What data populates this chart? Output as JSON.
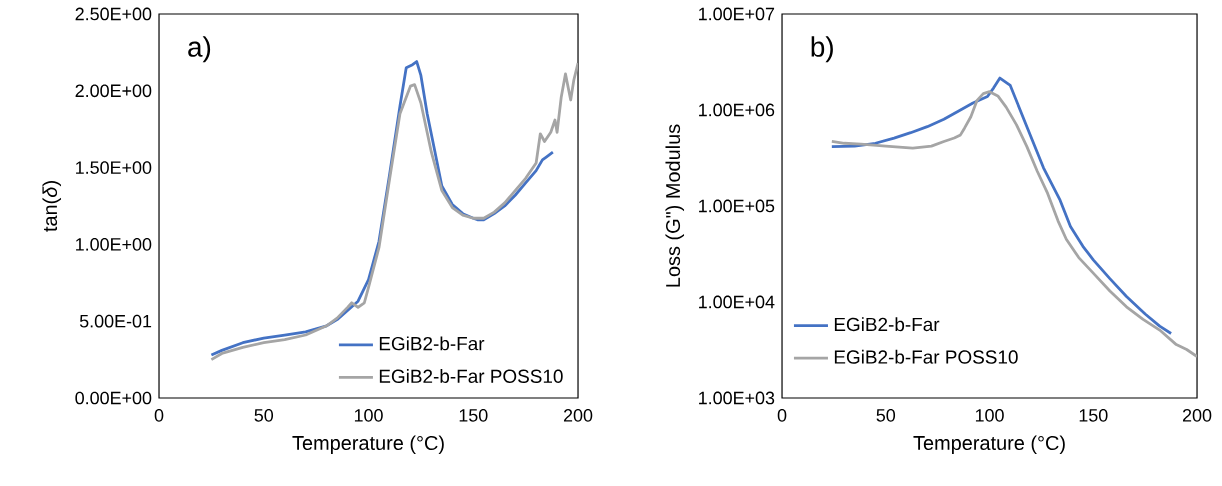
{
  "chart_data": [
    {
      "type": "line",
      "xlabel": "Temperature (°C)",
      "ylabel": "tan(*δ*)",
      "annotations": [
        "a)"
      ],
      "xlim": [
        0,
        200
      ],
      "xticks": [
        0,
        50,
        100,
        150,
        200
      ],
      "ylim": [
        0,
        2.5
      ],
      "yticks": [
        {
          "value": 0,
          "label": "0.00E+00"
        },
        {
          "value": 0.5,
          "label": "5.00E-01"
        },
        {
          "value": 1,
          "label": "1.00E+00"
        },
        {
          "value": 1.5,
          "label": "1.50E+00"
        },
        {
          "value": 2,
          "label": "2.00E+00"
        },
        {
          "value": 2.5,
          "label": "2.50E+00"
        }
      ],
      "grid": false,
      "legend": "bottom right",
      "marker": "none",
      "line_style": "solid",
      "series": [
        {
          "name": "EGiB2-b-Far",
          "color": "#4472c4",
          "x": [
            25,
            30,
            40,
            50,
            60,
            70,
            80,
            85,
            90,
            95,
            100,
            105,
            110,
            115,
            118,
            121,
            123,
            125,
            128,
            131,
            135,
            140,
            145,
            150,
            152,
            155,
            160,
            165,
            170,
            175,
            180,
            183,
            185,
            188
          ],
          "values": [
            0.28,
            0.31,
            0.36,
            0.39,
            0.41,
            0.43,
            0.47,
            0.51,
            0.57,
            0.63,
            0.77,
            1.02,
            1.45,
            1.9,
            2.15,
            2.17,
            2.19,
            2.1,
            1.85,
            1.65,
            1.38,
            1.26,
            1.2,
            1.17,
            1.16,
            1.16,
            1.2,
            1.25,
            1.32,
            1.4,
            1.48,
            1.55,
            1.57,
            1.6
          ]
        },
        {
          "name": "EGiB2-b-Far POSS10",
          "color": "#a5a5a5",
          "x": [
            25,
            30,
            40,
            50,
            60,
            70,
            80,
            85,
            90,
            92,
            95,
            98,
            100,
            105,
            110,
            115,
            120,
            122,
            125,
            130,
            135,
            140,
            145,
            150,
            155,
            160,
            165,
            170,
            175,
            180,
            182,
            184,
            187,
            189,
            190,
            192,
            194,
            196.5,
            198,
            200
          ],
          "values": [
            0.25,
            0.29,
            0.33,
            0.36,
            0.38,
            0.41,
            0.47,
            0.52,
            0.59,
            0.62,
            0.59,
            0.62,
            0.72,
            0.98,
            1.42,
            1.85,
            2.03,
            2.04,
            1.92,
            1.6,
            1.35,
            1.24,
            1.19,
            1.17,
            1.17,
            1.21,
            1.27,
            1.35,
            1.43,
            1.53,
            1.72,
            1.67,
            1.73,
            1.81,
            1.73,
            1.96,
            2.11,
            1.94,
            2.07,
            2.18
          ]
        }
      ]
    },
    {
      "type": "line",
      "xlabel": "Temperature (°C)",
      "ylabel": "Loss (G\") Modulus",
      "annotations": [
        "b)"
      ],
      "xlim": [
        0,
        200
      ],
      "xticks": [
        0,
        50,
        100,
        150,
        200
      ],
      "ylim": [
        1000,
        10000000
      ],
      "log": true,
      "yticks": [
        {
          "value": 1000,
          "label": "1.00E+03"
        },
        {
          "value": 10000,
          "label": "1.00E+04"
        },
        {
          "value": 100000,
          "label": "1.00E+05"
        },
        {
          "value": 1000000,
          "label": "1.00E+06"
        },
        {
          "value": 10000000,
          "label": "1.00E+07"
        }
      ],
      "grid": false,
      "legend": "bottom left",
      "marker": "none",
      "line_style": "solid",
      "series": [
        {
          "name": "EGiB2-b-Far",
          "color": "#4472c4",
          "x": [
            24,
            35,
            45,
            54,
            62,
            70,
            78,
            86,
            92,
            99,
            102,
            105,
            110,
            118,
            126,
            134,
            139,
            145,
            150,
            158,
            166,
            175,
            182,
            187.5
          ],
          "values": [
            415000,
            420000,
            450000,
            510000,
            580000,
            670000,
            800000,
            1000000,
            1180000,
            1380000,
            1700000,
            2150000,
            1800000,
            670000,
            250000,
            115000,
            61000,
            38000,
            27500,
            17500,
            11400,
            7500,
            5600,
            4700
          ]
        },
        {
          "name": "EGiB2-b-Far POSS10",
          "color": "#a5a5a5",
          "x": [
            24,
            30,
            38,
            50,
            63,
            72,
            78,
            83,
            86,
            88,
            91,
            94,
            97,
            100,
            104,
            108,
            113,
            118,
            123,
            128,
            133,
            137,
            143,
            150,
            158,
            166,
            174,
            182,
            190,
            195,
            200
          ],
          "values": [
            470000,
            450000,
            440000,
            420000,
            400000,
            420000,
            470000,
            510000,
            550000,
            650000,
            850000,
            1260000,
            1480000,
            1550000,
            1400000,
            1070000,
            700000,
            415000,
            230000,
            135000,
            70000,
            45000,
            29000,
            20000,
            13000,
            8900,
            6600,
            5100,
            3600,
            3200,
            2700
          ]
        }
      ]
    }
  ]
}
